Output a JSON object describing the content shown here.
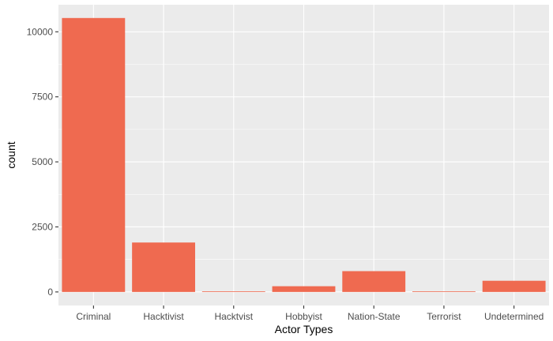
{
  "chart_data": {
    "type": "bar",
    "categories": [
      "Criminal",
      "Hacktivist",
      "Hacktvist",
      "Hobbyist",
      "Nation-State",
      "Terrorist",
      "Undetermined"
    ],
    "values": [
      10530,
      1900,
      25,
      220,
      800,
      20,
      430
    ],
    "xlabel": "Actor Types",
    "ylabel": "count",
    "ylim": [
      -520,
      11040
    ],
    "yticks": [
      0,
      2500,
      5000,
      7500,
      10000
    ],
    "grid": true,
    "colors": {
      "bar": "#EF6A50",
      "panel": "#EBEBEB",
      "grid_major": "#FFFFFF"
    }
  }
}
